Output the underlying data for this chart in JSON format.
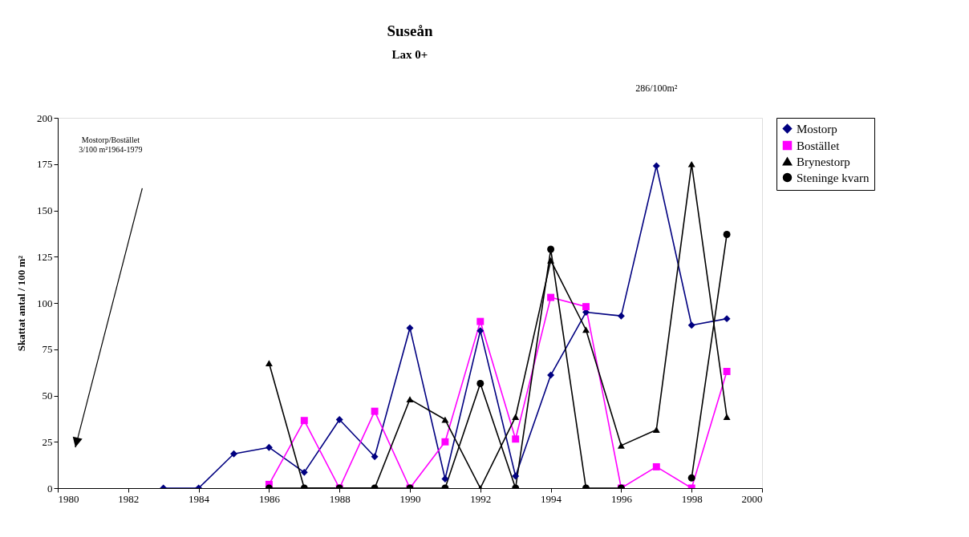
{
  "chart_data": {
    "type": "line",
    "title": "Suseån",
    "subtitle": "Lax 0+",
    "ylabel": "Skattat antal / 100 m²",
    "x": [
      1983,
      1984,
      1985,
      1986,
      1987,
      1988,
      1989,
      1990,
      1991,
      1992,
      1993,
      1994,
      1995,
      1996,
      1997,
      1998,
      1999
    ],
    "series": [
      {
        "name": "Mostorp",
        "color": "#000080",
        "marker": "diamond",
        "values": [
          0,
          0,
          18.5,
          22,
          8.5,
          37,
          17,
          86.5,
          5,
          85,
          6.5,
          61,
          95,
          93,
          174,
          88,
          91.5
        ]
      },
      {
        "name": "Bostället",
        "color": "#ff00ff",
        "marker": "square",
        "values": [
          null,
          null,
          null,
          2,
          36.5,
          0,
          41.5,
          0,
          25,
          90,
          26.5,
          103,
          98,
          0,
          11.5,
          0,
          63
        ]
      },
      {
        "name": "Brynestorp",
        "color": "#000000",
        "marker": "triangle",
        "values": [
          null,
          null,
          null,
          67.5,
          0,
          0,
          0,
          48,
          37,
          0,
          38.5,
          123,
          85.5,
          23,
          31.5,
          175,
          38.5
        ]
      },
      {
        "name": "Steninge kvarn",
        "color": "#000000",
        "marker": "circle",
        "values": [
          null,
          null,
          null,
          0,
          0,
          0,
          0,
          0,
          0,
          56.5,
          0,
          129,
          0,
          0,
          null,
          5.5,
          137
        ]
      }
    ],
    "xlim": [
      1980,
      2000
    ],
    "xticks": [
      1980,
      1982,
      1984,
      1986,
      1988,
      1990,
      1992,
      1994,
      1996,
      1998,
      2000
    ],
    "ylim": [
      0,
      200
    ],
    "yticks": [
      0,
      25,
      50,
      75,
      100,
      125,
      150,
      175,
      200
    ],
    "grid": false,
    "legend": "right",
    "line_style": "solid",
    "annotations": [
      "286/100m²",
      "Mostorp/Bostället\n3/100 m²1964-1979"
    ]
  }
}
